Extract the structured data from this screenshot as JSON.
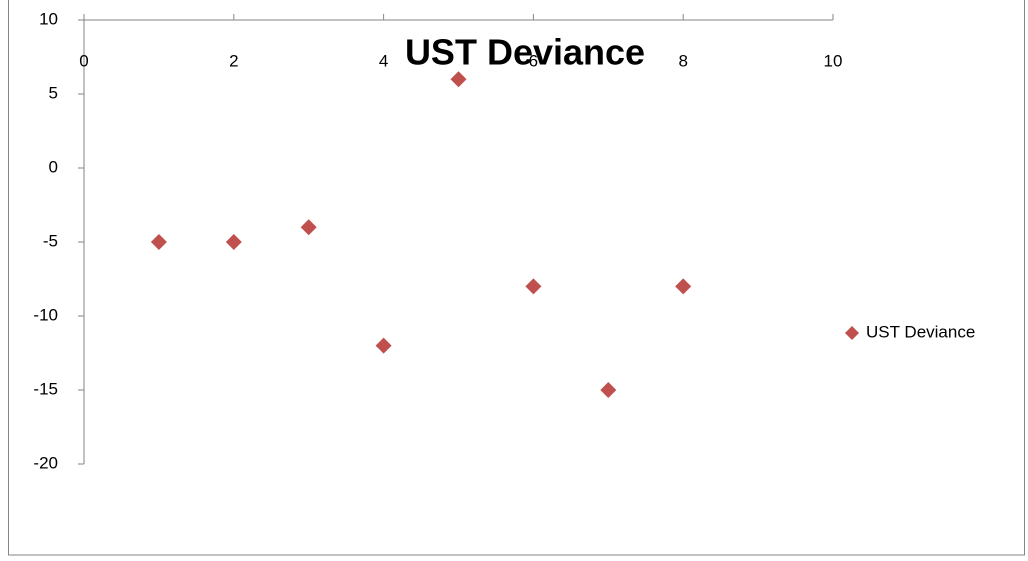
{
  "chart_data": {
    "type": "scatter",
    "title": "UST Deviance",
    "x": [
      1,
      2,
      3,
      4,
      5,
      6,
      7,
      8
    ],
    "series": [
      {
        "name": "UST Deviance",
        "color": "#c0504d",
        "values": [
          -5,
          -5,
          -4,
          -12,
          6,
          -8,
          -15,
          -8
        ]
      }
    ],
    "xlim": [
      0,
      10
    ],
    "xticks": [
      0,
      2,
      4,
      6,
      8,
      10
    ],
    "ylim": [
      -20,
      10
    ],
    "yticks": [
      -20,
      -15,
      -10,
      -5,
      0,
      5,
      10
    ],
    "marker": "diamond",
    "legend": "right",
    "grid": false
  }
}
